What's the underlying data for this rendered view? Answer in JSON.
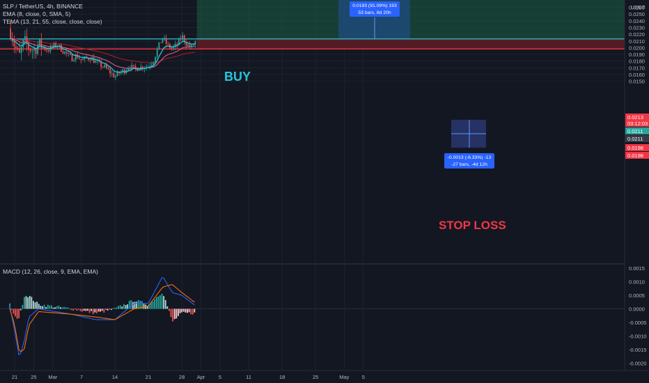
{
  "header": {
    "title": "SLP / TetherUS, 4h, BINANCE",
    "ema": "EMA (8, close, 0, SMA, 5)",
    "tema": "TEMA (13, 21, 55, close, close, close)",
    "currency": "USDT",
    "macd": "MACD (12, 26, close, 9, EMA, EMA)"
  },
  "annotations": {
    "buy": "BUY",
    "stop_loss": "STOP LOSS",
    "target_box": [
      "0.0193 (91.09%) 193",
      "53 bars, 8d 20h"
    ],
    "measure_box": [
      "-0.0013 (-6.33%) -13",
      "-27 bars, -4d 12h"
    ]
  },
  "price_tags": {
    "upper_line": "0.0213",
    "countdown": "03:12:03",
    "current": "0.0211",
    "current2": "0.0211",
    "lower_line": "0.0198",
    "lower_line2": "0.0198"
  },
  "colors": {
    "background": "#131722",
    "up": "#26a69a",
    "down": "#ef5350",
    "ema": "#26c6da",
    "tema": "#f06292",
    "tema_slow": "#b71c1c",
    "target_zone": "#1b5e43",
    "stop_zone": "#6b1d25",
    "buy_text": "#26c6da",
    "stop_text": "#f23645",
    "macd_line": "#2962ff",
    "signal_line": "#ff6d00"
  },
  "chart_data": [
    {
      "type": "candlestick",
      "title": "SLP / TetherUS, 4h, BINANCE",
      "x_tick_labels": [
        "21",
        "25",
        "Mar",
        "7",
        "14",
        "21",
        "28",
        "Apr",
        "5",
        "11",
        "18",
        "25",
        "May",
        "5"
      ],
      "y_tick_labels": [
        "0.0150",
        "0.0160",
        "0.0170",
        "0.0180",
        "0.0190",
        "0.0200",
        "0.0210",
        "0.0220",
        "0.0230",
        "0.0240",
        "0.0250",
        "0.0260"
      ],
      "ylim": [
        0.0144,
        0.0263
      ],
      "close_path": [
        {
          "x": "Feb 20",
          "y": 0.0228
        },
        {
          "x": "Feb 21",
          "y": 0.0203
        },
        {
          "x": "Feb 22",
          "y": 0.0187
        },
        {
          "x": "Feb 23",
          "y": 0.021
        },
        {
          "x": "Feb 24",
          "y": 0.02
        },
        {
          "x": "Feb 25",
          "y": 0.0195
        },
        {
          "x": "Feb 26",
          "y": 0.0206
        },
        {
          "x": "Feb 27",
          "y": 0.02
        },
        {
          "x": "Feb 28",
          "y": 0.0196
        },
        {
          "x": "Mar 1",
          "y": 0.0202
        },
        {
          "x": "Mar 2",
          "y": 0.0204
        },
        {
          "x": "Mar 3",
          "y": 0.0196
        },
        {
          "x": "Mar 5",
          "y": 0.0184
        },
        {
          "x": "Mar 6",
          "y": 0.0188
        },
        {
          "x": "Mar 7",
          "y": 0.0181
        },
        {
          "x": "Mar 8",
          "y": 0.0184
        },
        {
          "x": "Mar 9",
          "y": 0.0185
        },
        {
          "x": "Mar 10",
          "y": 0.0178
        },
        {
          "x": "Mar 12",
          "y": 0.017
        },
        {
          "x": "Mar 13",
          "y": 0.0163
        },
        {
          "x": "Mar 14",
          "y": 0.0157
        },
        {
          "x": "Mar 15",
          "y": 0.0163
        },
        {
          "x": "Mar 16",
          "y": 0.0166
        },
        {
          "x": "Mar 17",
          "y": 0.0173
        },
        {
          "x": "Mar 18",
          "y": 0.0168
        },
        {
          "x": "Mar 19",
          "y": 0.017
        },
        {
          "x": "Mar 20",
          "y": 0.0172
        },
        {
          "x": "Mar 21",
          "y": 0.0173
        },
        {
          "x": "Mar 22",
          "y": 0.018
        },
        {
          "x": "Mar 23",
          "y": 0.02
        },
        {
          "x": "Mar 24",
          "y": 0.0215
        },
        {
          "x": "Mar 25",
          "y": 0.0203
        },
        {
          "x": "Mar 26",
          "y": 0.0199
        },
        {
          "x": "Mar 27",
          "y": 0.0204
        },
        {
          "x": "Mar 28",
          "y": 0.0218
        },
        {
          "x": "Mar 29",
          "y": 0.0205
        },
        {
          "x": "Mar 30",
          "y": 0.02
        },
        {
          "x": "Mar 31",
          "y": 0.0211
        }
      ],
      "levels": {
        "upper_line": 0.0213,
        "lower_line": 0.0198,
        "current": 0.0211
      }
    },
    {
      "type": "bar+line",
      "title": "MACD (12, 26, close, 9, EMA, EMA)",
      "y_tick_labels": [
        "-0.0020",
        "-0.0015",
        "-0.0010",
        "-0.0005",
        "0.0000",
        "0.0005",
        "0.0010",
        "0.0015"
      ],
      "ylim": [
        -0.0021,
        0.0016
      ],
      "macd_path": [
        {
          "x": "Feb 20",
          "y": 0.0001
        },
        {
          "x": "Feb 21",
          "y": -0.0008
        },
        {
          "x": "Feb 22",
          "y": -0.0018
        },
        {
          "x": "Feb 23",
          "y": -0.0012
        },
        {
          "x": "Feb 24",
          "y": -0.0003
        },
        {
          "x": "Feb 26",
          "y": 0.0
        },
        {
          "x": "Mar 5",
          "y": -0.0002
        },
        {
          "x": "Mar 10",
          "y": -0.0004
        },
        {
          "x": "Mar 14",
          "y": -0.0004
        },
        {
          "x": "Mar 18",
          "y": 0.0002
        },
        {
          "x": "Mar 21",
          "y": 0.0002
        },
        {
          "x": "Mar 24",
          "y": 0.0012
        },
        {
          "x": "Mar 26",
          "y": 0.0006
        },
        {
          "x": "Mar 28",
          "y": 0.0005
        },
        {
          "x": "Mar 31",
          "y": 0.0001
        }
      ],
      "signal_path": [
        {
          "x": "Feb 20",
          "y": 0.0
        },
        {
          "x": "Feb 21",
          "y": -0.0006
        },
        {
          "x": "Feb 22",
          "y": -0.0016
        },
        {
          "x": "Feb 23",
          "y": -0.0015
        },
        {
          "x": "Feb 24",
          "y": -0.0006
        },
        {
          "x": "Feb 26",
          "y": -0.0001
        },
        {
          "x": "Mar 5",
          "y": -0.0002
        },
        {
          "x": "Mar 10",
          "y": -0.0003
        },
        {
          "x": "Mar 14",
          "y": -0.0004
        },
        {
          "x": "Mar 18",
          "y": 0.0
        },
        {
          "x": "Mar 21",
          "y": 0.0001
        },
        {
          "x": "Mar 24",
          "y": 0.0008
        },
        {
          "x": "Mar 26",
          "y": 0.0009
        },
        {
          "x": "Mar 28",
          "y": 0.0006
        },
        {
          "x": "Mar 31",
          "y": 0.0002
        }
      ]
    }
  ]
}
